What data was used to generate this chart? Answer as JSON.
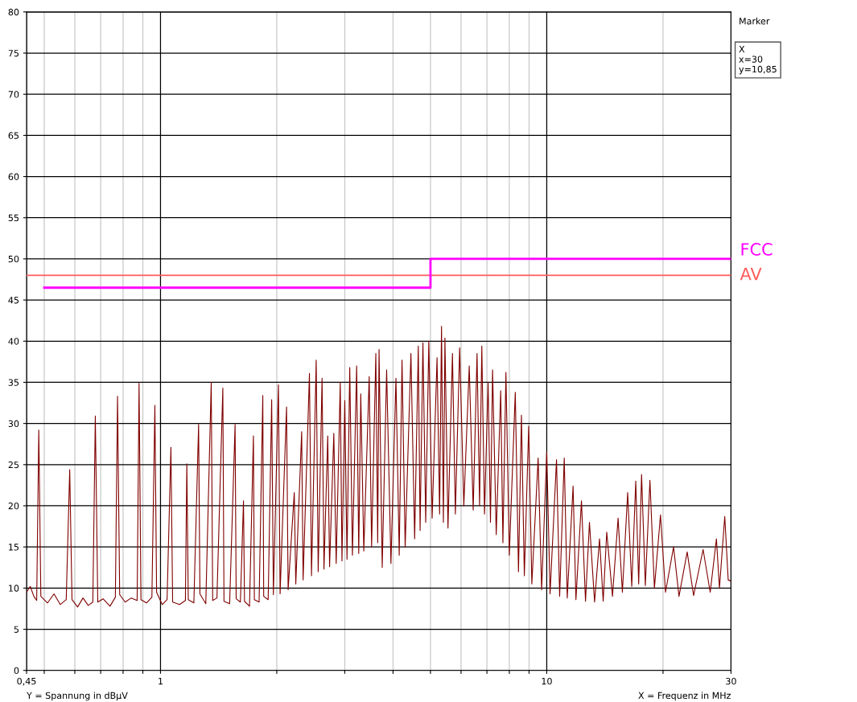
{
  "chart_data": {
    "type": "line",
    "xlabel": "X = Frequenz in MHz",
    "annotations": [
      "Y = Spannung in dBμV",
      "Marker",
      "X",
      "x=30",
      "y=10,85"
    ],
    "log": "x",
    "xlim": [
      0.45,
      30
    ],
    "ylim": [
      0,
      80
    ],
    "xticks": [
      {
        "value": 0.45,
        "label": "0,45"
      },
      {
        "value": 0.5,
        "label": null
      },
      {
        "value": 0.6,
        "label": null
      },
      {
        "value": 0.7,
        "label": null
      },
      {
        "value": 0.8,
        "label": null
      },
      {
        "value": 0.9,
        "label": null
      },
      1,
      {
        "value": 2,
        "label": null
      },
      {
        "value": 3,
        "label": null
      },
      {
        "value": 4,
        "label": null
      },
      {
        "value": 5,
        "label": null
      },
      {
        "value": 6,
        "label": null
      },
      {
        "value": 7,
        "label": null
      },
      {
        "value": 8,
        "label": null
      },
      {
        "value": 9,
        "label": null
      },
      10,
      {
        "value": 20,
        "label": null
      },
      30
    ],
    "yticks": [
      0,
      5,
      10,
      15,
      20,
      25,
      30,
      35,
      40,
      45,
      50,
      55,
      60,
      65,
      70,
      75,
      80
    ],
    "grid": true,
    "legend": false,
    "ref_lines": [
      {
        "axis": "y",
        "value": 48,
        "label": "AV",
        "color": "#ff5a5a"
      }
    ],
    "series": [
      {
        "color": "#800000",
        "x": [
          0.45,
          0.46,
          0.47,
          0.478,
          0.484,
          0.49,
          0.51,
          0.53,
          0.55,
          0.57,
          0.582,
          0.59,
          0.61,
          0.63,
          0.65,
          0.668,
          0.678,
          0.688,
          0.71,
          0.74,
          0.764,
          0.774,
          0.784,
          0.81,
          0.84,
          0.87,
          0.88,
          0.89,
          0.92,
          0.95,
          0.967,
          0.977,
          1.01,
          1.04,
          1.064,
          1.075,
          1.12,
          1.16,
          1.17,
          1.18,
          1.22,
          1.255,
          1.265,
          1.31,
          1.353,
          1.365,
          1.4,
          1.45,
          1.46,
          1.51,
          1.56,
          1.57,
          1.61,
          1.64,
          1.65,
          1.7,
          1.74,
          1.75,
          1.8,
          1.84,
          1.85,
          1.9,
          1.94,
          1.96,
          2.02,
          2.04,
          2.12,
          2.14,
          2.22,
          2.24,
          2.32,
          2.34,
          2.43,
          2.46,
          2.53,
          2.56,
          2.62,
          2.65,
          2.71,
          2.74,
          2.81,
          2.85,
          2.92,
          2.95,
          3.0,
          3.04,
          3.09,
          3.14,
          3.22,
          3.26,
          3.3,
          3.36,
          3.47,
          3.52,
          3.61,
          3.65,
          3.68,
          3.75,
          3.85,
          3.95,
          4.07,
          4.15,
          4.22,
          4.3,
          4.45,
          4.55,
          4.65,
          4.7,
          4.78,
          4.86,
          4.95,
          5.05,
          5.2,
          5.28,
          5.34,
          5.4,
          5.45,
          5.55,
          5.7,
          5.8,
          5.95,
          6.1,
          6.3,
          6.45,
          6.6,
          6.7,
          6.79,
          6.9,
          7.05,
          7.15,
          7.24,
          7.4,
          7.6,
          7.7,
          7.84,
          8.0,
          8.29,
          8.45,
          8.6,
          8.75,
          8.98,
          9.15,
          9.5,
          9.7,
          10.0,
          10.2,
          10.6,
          10.8,
          11.1,
          11.3,
          11.7,
          11.9,
          12.3,
          12.6,
          12.9,
          13.3,
          13.7,
          14.0,
          14.3,
          14.8,
          15.3,
          15.7,
          16.2,
          16.6,
          17.0,
          17.3,
          17.6,
          18.0,
          18.5,
          19.0,
          19.7,
          20.3,
          21.3,
          22.0,
          23.1,
          24.0,
          25.4,
          26.5,
          27.5,
          28.0,
          28.9,
          29.5,
          30
        ],
        "values": [
          9.5,
          10.2,
          9,
          8.5,
          29.2,
          9,
          8.2,
          9.3,
          8.0,
          8.6,
          24.4,
          8.6,
          7.7,
          8.8,
          7.9,
          8.3,
          30.9,
          8.3,
          8.7,
          7.8,
          8.9,
          33.3,
          9.2,
          8.3,
          8.8,
          8.5,
          34.9,
          8.6,
          8.2,
          8.9,
          32.2,
          9.5,
          8.0,
          8.6,
          27.1,
          8.3,
          8.0,
          8.5,
          25.1,
          8.6,
          8.2,
          29.9,
          9.3,
          8.1,
          35,
          8.5,
          8.8,
          34.3,
          8.4,
          8.1,
          29.9,
          8.7,
          8.3,
          20.6,
          8.4,
          7.8,
          28.5,
          8.6,
          8.3,
          33.4,
          9.0,
          8.6,
          32.9,
          9.2,
          34.7,
          9.3,
          32,
          9.8,
          21.6,
          10.5,
          29,
          11,
          36.1,
          11.5,
          37.7,
          12,
          35.5,
          12.3,
          28.5,
          12.6,
          28.8,
          13,
          35,
          13.3,
          32.8,
          13.5,
          36.8,
          14,
          37,
          14.2,
          33.6,
          14.5,
          35.7,
          15,
          38.5,
          15.5,
          39,
          12.5,
          36.5,
          13,
          35.5,
          14,
          37.7,
          15,
          38.5,
          16,
          39.4,
          17,
          39.8,
          18,
          40,
          18.5,
          38,
          19,
          41.8,
          18,
          40.4,
          17.3,
          38.5,
          19,
          39.2,
          20,
          37,
          19.5,
          38.5,
          20,
          39.4,
          19,
          35,
          18,
          36.5,
          16.5,
          34,
          15.5,
          36.2,
          14,
          33.8,
          12,
          31,
          11.5,
          29.7,
          10.5,
          25.8,
          9.8,
          26.5,
          9.3,
          25.6,
          9,
          25.8,
          8.8,
          22.4,
          8.6,
          20.6,
          8.4,
          18,
          8.3,
          16,
          8.4,
          16.8,
          9,
          18.5,
          9.5,
          21.6,
          10.2,
          23,
          10.5,
          23.8,
          10.3,
          23.1,
          10,
          18.9,
          9.5,
          15,
          9,
          14.4,
          9.1,
          14.7,
          9.5,
          16,
          10,
          18.7,
          11,
          10.85
        ]
      },
      {
        "name": "FCC",
        "type": "step",
        "color": "#ff00ff",
        "x": [
          0.5,
          5,
          30
        ],
        "values": [
          46.5,
          50,
          50
        ]
      }
    ]
  }
}
